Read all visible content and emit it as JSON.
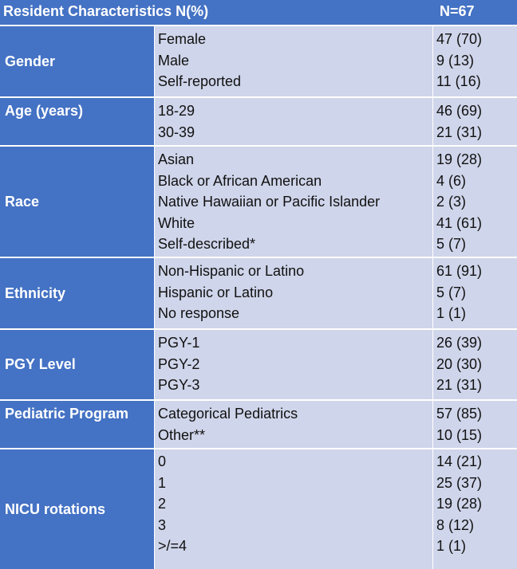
{
  "header": {
    "title": "Resident Characteristics N(%)",
    "total": "N=67"
  },
  "groups": [
    {
      "category": "Gender",
      "rows": [
        {
          "label": "Female",
          "value": "47 (70)"
        },
        {
          "label": "Male",
          "value": "9 (13)"
        },
        {
          "label": "Self-reported",
          "value": "11 (16)"
        }
      ]
    },
    {
      "category": "Age (years)",
      "rows": [
        {
          "label": "18-29",
          "value": "46 (69)"
        },
        {
          "label": "30-39",
          "value": "21 (31)"
        }
      ]
    },
    {
      "category": "Race",
      "rows": [
        {
          "label": "Asian",
          "value": "19 (28)"
        },
        {
          "label": "Black or African American",
          "value": "4 (6)"
        },
        {
          "label": "Native Hawaiian or Pacific Islander",
          "value": "2 (3)"
        },
        {
          "label": "White",
          "value": "41 (61)"
        },
        {
          "label": "Self-described*",
          "value": "5 (7)"
        }
      ]
    },
    {
      "category": "Ethnicity",
      "rows": [
        {
          "label": "Non-Hispanic or Latino",
          "value": "61 (91)"
        },
        {
          "label": "Hispanic or Latino",
          "value": "5 (7)"
        },
        {
          "label": "No response",
          "value": "1 (1)"
        }
      ]
    },
    {
      "category": "PGY Level",
      "rows": [
        {
          "label": "PGY-1",
          "value": "26 (39)"
        },
        {
          "label": "PGY-2",
          "value": "20 (30)"
        },
        {
          "label": "PGY-3",
          "value": "21 (31)"
        }
      ]
    },
    {
      "category": "Pediatric Program",
      "rows": [
        {
          "label": "Categorical Pediatrics",
          "value": "57 (85)"
        },
        {
          "label": "Other**",
          "value": "10 (15)"
        }
      ]
    },
    {
      "category": "NICU rotations",
      "rows": [
        {
          "label": "0",
          "value": "14 (21)"
        },
        {
          "label": "1",
          "value": "25 (37)"
        },
        {
          "label": "2",
          "value": "19 (28)"
        },
        {
          "label": "3",
          "value": "8 (12)"
        },
        {
          "label": ">/=4",
          "value": "1 (1)"
        }
      ]
    }
  ]
}
